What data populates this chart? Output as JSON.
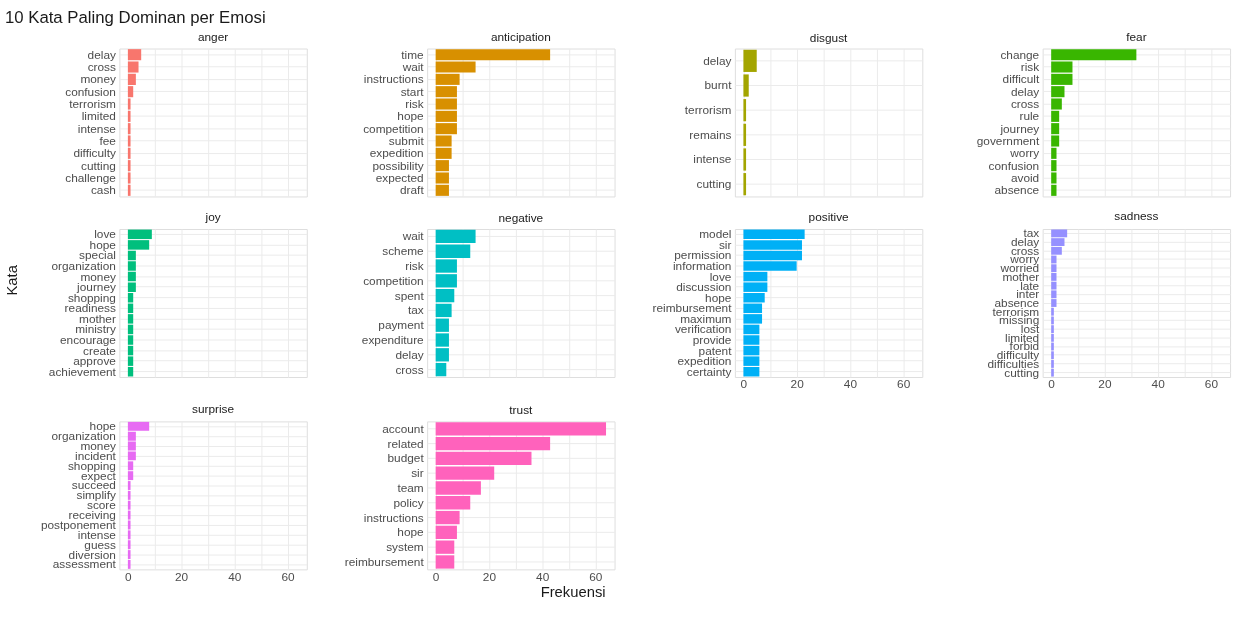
{
  "chart_data": [
    {
      "type": "bar",
      "orientation": "horizontal",
      "title": "anger",
      "color": "#f8766d",
      "tick_labels": "y",
      "grid": true,
      "xlim": [
        -3.2,
        67.2
      ],
      "xticks": [
        0,
        {
          "value": 10,
          "label": null
        },
        20,
        {
          "value": 30,
          "label": null
        },
        40,
        {
          "value": 50,
          "label": null
        },
        60
      ],
      "categories": [
        "delay",
        "cross",
        "money",
        "confusion",
        "terrorism",
        "limited",
        "intense",
        "fee",
        "difficulty",
        "cutting",
        "challenge",
        "cash"
      ],
      "values": [
        5,
        4,
        3,
        2,
        1,
        1,
        1,
        1,
        1,
        1,
        1,
        1
      ]
    },
    {
      "type": "bar",
      "orientation": "horizontal",
      "title": "anticipation",
      "color": "#d89000",
      "tick_labels": "y",
      "grid": true,
      "xlim": [
        -3.2,
        67.2
      ],
      "xticks": [
        0,
        {
          "value": 10,
          "label": null
        },
        20,
        {
          "value": 30,
          "label": null
        },
        40,
        {
          "value": 50,
          "label": null
        },
        60
      ],
      "categories": [
        "time",
        "wait",
        "instructions",
        "start",
        "risk",
        "hope",
        "competition",
        "submit",
        "expedition",
        "possibility",
        "expected",
        "draft"
      ],
      "values": [
        43,
        15,
        9,
        8,
        8,
        8,
        8,
        6,
        6,
        5,
        5,
        5
      ]
    },
    {
      "type": "bar",
      "orientation": "horizontal",
      "title": "disgust",
      "color": "#a3a500",
      "tick_labels": "y",
      "grid": true,
      "xlim": [
        -3.2,
        67.2
      ],
      "xticks": [
        0,
        {
          "value": 10,
          "label": null
        },
        20,
        {
          "value": 30,
          "label": null
        },
        40,
        {
          "value": 50,
          "label": null
        },
        60
      ],
      "categories": [
        "delay",
        "burnt",
        "terrorism",
        "remains",
        "intense",
        "cutting"
      ],
      "values": [
        5,
        2,
        1,
        1,
        1,
        1
      ]
    },
    {
      "type": "bar",
      "orientation": "horizontal",
      "title": "fear",
      "color": "#39b600",
      "tick_labels": "y",
      "grid": true,
      "xlim": [
        -3.2,
        67.2
      ],
      "xticks": [
        0,
        {
          "value": 10,
          "label": null
        },
        20,
        {
          "value": 30,
          "label": null
        },
        40,
        {
          "value": 50,
          "label": null
        },
        60
      ],
      "categories": [
        "change",
        "risk",
        "difficult",
        "delay",
        "cross",
        "rule",
        "journey",
        "government",
        "worry",
        "confusion",
        "avoid",
        "absence"
      ],
      "values": [
        32,
        8,
        8,
        5,
        4,
        3,
        3,
        3,
        2,
        2,
        2,
        2
      ]
    },
    {
      "type": "bar",
      "orientation": "horizontal",
      "title": "joy",
      "color": "#00bf7d",
      "tick_labels": "y",
      "grid": true,
      "xlim": [
        -3.2,
        67.2
      ],
      "xticks": [
        0,
        {
          "value": 10,
          "label": null
        },
        20,
        {
          "value": 30,
          "label": null
        },
        40,
        {
          "value": 50,
          "label": null
        },
        60
      ],
      "categories": [
        "love",
        "hope",
        "special",
        "organization",
        "money",
        "journey",
        "shopping",
        "readiness",
        "mother",
        "ministry",
        "encourage",
        "create",
        "approve",
        "achievement"
      ],
      "values": [
        9,
        8,
        3,
        3,
        3,
        3,
        2,
        2,
        2,
        2,
        2,
        2,
        2,
        2
      ]
    },
    {
      "type": "bar",
      "orientation": "horizontal",
      "title": "negative",
      "color": "#00bfc4",
      "tick_labels": "y",
      "grid": true,
      "xlim": [
        -3.2,
        67.2
      ],
      "xticks": [
        0,
        {
          "value": 10,
          "label": null
        },
        20,
        {
          "value": 30,
          "label": null
        },
        40,
        {
          "value": 50,
          "label": null
        },
        60
      ],
      "categories": [
        "wait",
        "scheme",
        "risk",
        "competition",
        "spent",
        "tax",
        "payment",
        "expenditure",
        "delay",
        "cross"
      ],
      "values": [
        15,
        13,
        8,
        8,
        7,
        6,
        5,
        5,
        5,
        4
      ]
    },
    {
      "type": "bar",
      "orientation": "horizontal",
      "title": "positive",
      "color": "#00b0f6",
      "grid": true,
      "xlim": [
        -3.2,
        67.2
      ],
      "xticks": [
        0,
        {
          "value": 10,
          "label": null
        },
        20,
        {
          "value": 30,
          "label": null
        },
        40,
        {
          "value": 50,
          "label": null
        },
        60
      ],
      "categories": [
        "model",
        "sir",
        "permission",
        "information",
        "love",
        "discussion",
        "hope",
        "reimbursement",
        "maximum",
        "verification",
        "provide",
        "patent",
        "expedition",
        "certainty"
      ],
      "values": [
        23,
        22,
        22,
        20,
        9,
        9,
        8,
        7,
        7,
        6,
        6,
        6,
        6,
        6
      ]
    },
    {
      "type": "bar",
      "orientation": "horizontal",
      "title": "sadness",
      "color": "#9590ff",
      "grid": true,
      "xlim": [
        -3.2,
        67.2
      ],
      "xticks": [
        0,
        {
          "value": 10,
          "label": null
        },
        20,
        {
          "value": 30,
          "label": null
        },
        40,
        {
          "value": 50,
          "label": null
        },
        60
      ],
      "categories": [
        "tax",
        "delay",
        "cross",
        "worry",
        "worried",
        "mother",
        "late",
        "inter",
        "absence",
        "terrorism",
        "missing",
        "lost",
        "limited",
        "forbid",
        "difficulty",
        "difficulties",
        "cutting"
      ],
      "values": [
        6,
        5,
        4,
        2,
        2,
        2,
        2,
        2,
        2,
        1,
        1,
        1,
        1,
        1,
        1,
        1,
        1
      ]
    },
    {
      "type": "bar",
      "orientation": "horizontal",
      "title": "surprise",
      "color": "#e76bf3",
      "grid": true,
      "xlim": [
        -3.2,
        67.2
      ],
      "xticks": [
        0,
        {
          "value": 10,
          "label": null
        },
        20,
        {
          "value": 30,
          "label": null
        },
        40,
        {
          "value": 50,
          "label": null
        },
        60
      ],
      "categories": [
        "hope",
        "organization",
        "money",
        "incident",
        "shopping",
        "expect",
        "succeed",
        "simplify",
        "score",
        "receiving",
        "postponement",
        "intense",
        "guess",
        "diversion",
        "assessment"
      ],
      "values": [
        8,
        3,
        3,
        3,
        2,
        2,
        1,
        1,
        1,
        1,
        1,
        1,
        1,
        1,
        1
      ]
    },
    {
      "type": "bar",
      "orientation": "horizontal",
      "title": "trust",
      "color": "#ff62bc",
      "grid": true,
      "xlim": [
        -3.2,
        67.2
      ],
      "xticks": [
        0,
        {
          "value": 10,
          "label": null
        },
        20,
        {
          "value": 30,
          "label": null
        },
        40,
        {
          "value": 50,
          "label": null
        },
        60
      ],
      "categories": [
        "account",
        "related",
        "budget",
        "sir",
        "team",
        "policy",
        "instructions",
        "hope",
        "system",
        "reimbursement"
      ],
      "values": [
        64,
        43,
        36,
        22,
        17,
        13,
        9,
        8,
        7,
        7
      ]
    },
    {
      "type": "other",
      "title": "10 Kata Paling Dominan per Emosi",
      "xlabel": "Frekuensi",
      "ylabel": "Kata"
    }
  ]
}
